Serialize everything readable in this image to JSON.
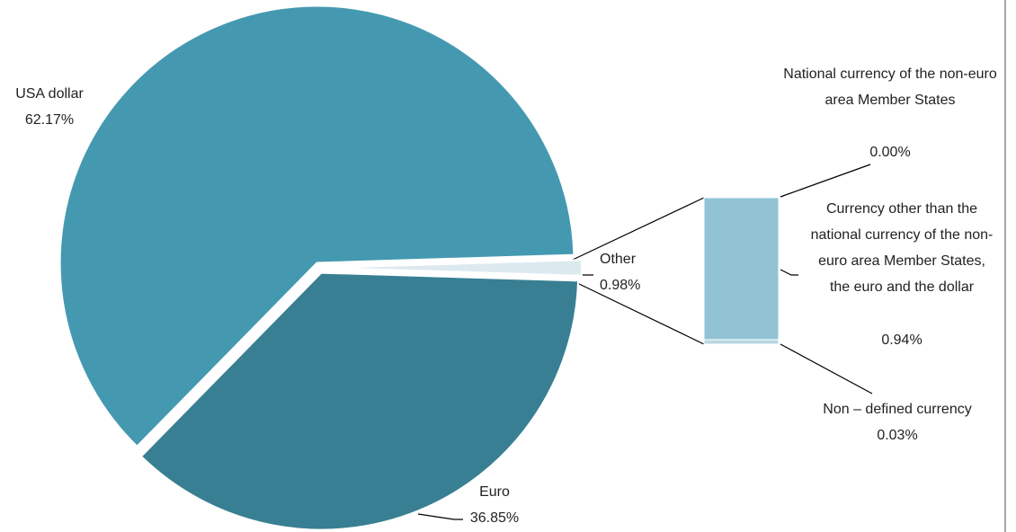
{
  "chart_data": {
    "type": "pie-of-bar",
    "categories": [
      "USA dollar",
      "Euro",
      "Other"
    ],
    "values": [
      62.17,
      36.85,
      0.98
    ],
    "value_labels": [
      "62.17%",
      "36.85%",
      "0.98%"
    ],
    "colors": [
      "#4499b1",
      "#387f93",
      "#dce9ef"
    ],
    "breakdown": {
      "categories": [
        "National currency of the non-euro area Member States",
        "Currency other than the national currency of the non-euro area Member States, the euro and the dollar",
        "Non – defined currency"
      ],
      "values": [
        0.0,
        0.94,
        0.03
      ],
      "value_labels": [
        "0.00%",
        "0.94%",
        "0.03%"
      ],
      "colors": [
        "#92c3d4",
        "#92c3d4",
        "#b9d8e4"
      ]
    }
  }
}
